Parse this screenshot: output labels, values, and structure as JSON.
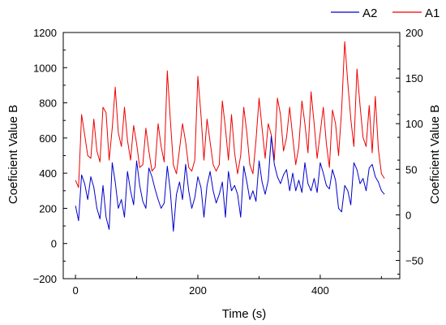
{
  "chart_data": {
    "type": "line",
    "title": "",
    "xlabel": "Time (s)",
    "ylabel_left": "Coeficient Value B",
    "ylabel_right": "Coeficient Value B",
    "xlim": [
      -20,
      530
    ],
    "ylim_left": [
      -200,
      1200
    ],
    "ylim_right": [
      -70,
      200
    ],
    "x_ticks": [
      0,
      200,
      400
    ],
    "x_minor_ticks": [
      100,
      300,
      500
    ],
    "y_left_ticks": [
      -200,
      0,
      200,
      400,
      600,
      800,
      1000,
      1200
    ],
    "y_right_ticks": [
      -50,
      0,
      50,
      100,
      150,
      200
    ],
    "grid": false,
    "legend_position": "top-right",
    "series": [
      {
        "name": "A2",
        "axis": "left",
        "color": "#0000cc",
        "x": [
          0,
          5,
          10,
          15,
          20,
          25,
          30,
          35,
          40,
          45,
          50,
          55,
          60,
          65,
          70,
          75,
          80,
          85,
          90,
          95,
          100,
          105,
          110,
          115,
          120,
          125,
          130,
          135,
          140,
          145,
          150,
          155,
          160,
          165,
          170,
          175,
          180,
          185,
          190,
          195,
          200,
          205,
          210,
          215,
          220,
          225,
          230,
          235,
          240,
          245,
          250,
          255,
          260,
          265,
          270,
          275,
          280,
          285,
          290,
          295,
          300,
          305,
          310,
          315,
          320,
          325,
          330,
          335,
          340,
          345,
          350,
          355,
          360,
          365,
          370,
          375,
          380,
          385,
          390,
          395,
          400,
          405,
          410,
          415,
          420,
          425,
          430,
          435,
          440,
          445,
          450,
          455,
          460,
          465,
          470,
          475,
          480,
          485,
          490,
          495,
          500,
          505
        ],
        "values": [
          215,
          130,
          390,
          340,
          250,
          380,
          320,
          200,
          140,
          330,
          150,
          80,
          460,
          350,
          200,
          250,
          150,
          410,
          300,
          220,
          470,
          330,
          240,
          200,
          430,
          380,
          310,
          250,
          200,
          230,
          440,
          300,
          70,
          280,
          350,
          250,
          450,
          300,
          200,
          260,
          380,
          320,
          150,
          330,
          410,
          300,
          230,
          280,
          350,
          150,
          410,
          300,
          330,
          280,
          150,
          440,
          350,
          250,
          300,
          240,
          470,
          350,
          280,
          360,
          610,
          450,
          380,
          340,
          390,
          420,
          300,
          400,
          300,
          360,
          290,
          460,
          340,
          300,
          370,
          290,
          460,
          400,
          330,
          310,
          420,
          360,
          200,
          180,
          330,
          300,
          220,
          460,
          420,
          340,
          370,
          300,
          430,
          450,
          380,
          350,
          300,
          280
        ]
      },
      {
        "name": "A1",
        "axis": "right",
        "color": "#ee0000",
        "x": [
          0,
          5,
          10,
          15,
          20,
          25,
          30,
          35,
          40,
          45,
          50,
          55,
          60,
          65,
          70,
          75,
          80,
          85,
          90,
          95,
          100,
          105,
          110,
          115,
          120,
          125,
          130,
          135,
          140,
          145,
          150,
          155,
          160,
          165,
          170,
          175,
          180,
          185,
          190,
          195,
          200,
          205,
          210,
          215,
          220,
          225,
          230,
          235,
          240,
          245,
          250,
          255,
          260,
          265,
          270,
          275,
          280,
          285,
          290,
          295,
          300,
          305,
          310,
          315,
          320,
          325,
          330,
          335,
          340,
          345,
          350,
          355,
          360,
          365,
          370,
          375,
          380,
          385,
          390,
          395,
          400,
          405,
          410,
          415,
          420,
          425,
          430,
          435,
          440,
          445,
          450,
          455,
          460,
          465,
          470,
          475,
          480,
          485,
          490,
          495,
          500,
          505
        ],
        "values": [
          38,
          30,
          110,
          88,
          65,
          62,
          105,
          70,
          58,
          118,
          112,
          60,
          95,
          140,
          90,
          75,
          118,
          82,
          60,
          98,
          78,
          52,
          55,
          95,
          70,
          48,
          52,
          100,
          75,
          58,
          158,
          105,
          55,
          45,
          72,
          100,
          80,
          52,
          48,
          60,
          152,
          110,
          60,
          105,
          80,
          55,
          48,
          55,
          125,
          95,
          60,
          110,
          68,
          45,
          65,
          118,
          90,
          55,
          45,
          82,
          128,
          95,
          62,
          100,
          88,
          60,
          128,
          110,
          70,
          85,
          118,
          85,
          55,
          75,
          125,
          100,
          68,
          135,
          100,
          62,
          90,
          118,
          78,
          52,
          115,
          100,
          65,
          115,
          190,
          145,
          105,
          75,
          160,
          120,
          85,
          75,
          120,
          68,
          130,
          72,
          45,
          40
        ]
      }
    ]
  }
}
